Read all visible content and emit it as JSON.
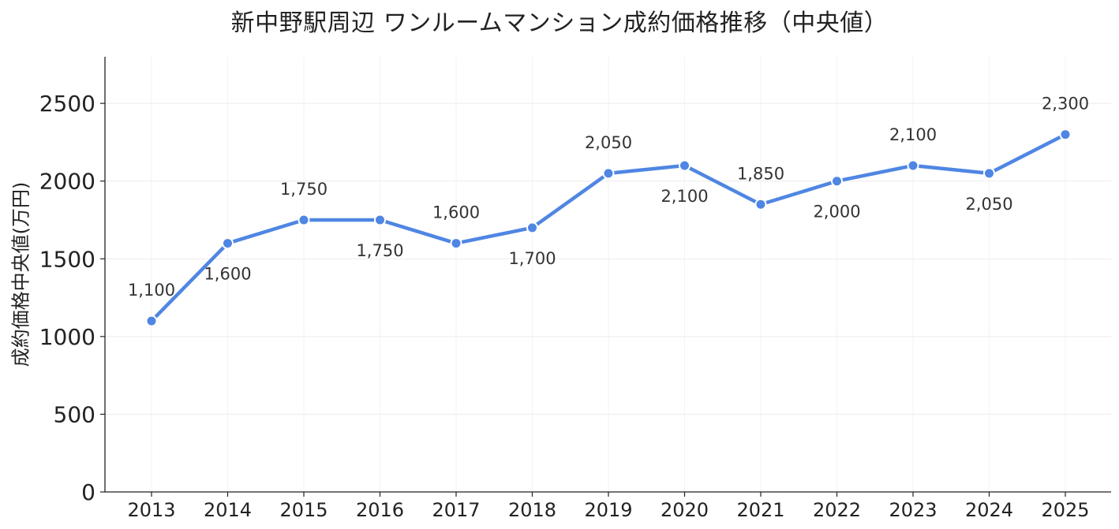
{
  "chart_data": {
    "type": "line",
    "title": "新中野駅周辺 ワンルームマンション成約価格推移（中央値）",
    "xlabel": "",
    "ylabel": "成約価格中央値(万円)",
    "categories": [
      "2013",
      "2014",
      "2015",
      "2016",
      "2017",
      "2018",
      "2019",
      "2020",
      "2021",
      "2022",
      "2023",
      "2024",
      "2025"
    ],
    "series": [
      {
        "values": [
          1100,
          1600,
          1750,
          1750,
          1600,
          1700,
          2050,
          2100,
          1850,
          2000,
          2100,
          2050,
          2300
        ]
      }
    ],
    "data_labels": [
      "1,100",
      "1,600",
      "1,750",
      "1,750",
      "1,600",
      "1,700",
      "2,050",
      "2,100",
      "1,850",
      "2,000",
      "2,100",
      "2,050",
      "2,300"
    ],
    "label_positions": [
      "above",
      "below",
      "above",
      "below",
      "above",
      "below",
      "above",
      "below",
      "above",
      "below",
      "above",
      "below",
      "above"
    ],
    "yticks": [
      0,
      500,
      1000,
      1500,
      2000,
      2500
    ],
    "ylim": [
      0,
      2800
    ],
    "grid": true,
    "line_color": "#4f86e3",
    "marker_color": "#4f86e3",
    "marker_edge_color": "#ffffff",
    "grid_color": "#ebebeb",
    "axis_color": "#222222"
  }
}
